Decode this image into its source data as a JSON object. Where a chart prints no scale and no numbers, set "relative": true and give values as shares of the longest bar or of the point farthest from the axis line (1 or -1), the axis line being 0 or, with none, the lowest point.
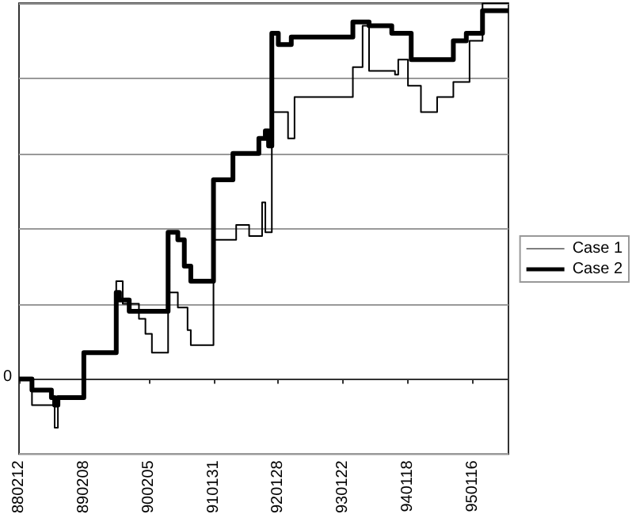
{
  "chart_data": {
    "type": "step",
    "relative": true,
    "categories": [
      "880212",
      null,
      null,
      null,
      null,
      null,
      null,
      null,
      null,
      null,
      null,
      null,
      null,
      null,
      null,
      null,
      null,
      null,
      null,
      null,
      "890208",
      null,
      null,
      null,
      null,
      null,
      null,
      null,
      null,
      null,
      null,
      null,
      null,
      null,
      null,
      null,
      null,
      null,
      null,
      null,
      "900205",
      null,
      null,
      null,
      null,
      null,
      null,
      null,
      null,
      null,
      null,
      null,
      null,
      null,
      null,
      null,
      null,
      null,
      null,
      null,
      "910131",
      null,
      null,
      null,
      null,
      null,
      null,
      null,
      null,
      null,
      null,
      null,
      null,
      null,
      null,
      null,
      null,
      null,
      null,
      null,
      "920128",
      null,
      null,
      null,
      null,
      null,
      null,
      null,
      null,
      null,
      null,
      null,
      null,
      null,
      null,
      null,
      null,
      null,
      null,
      null,
      "930122",
      null,
      null,
      null,
      null,
      null,
      null,
      null,
      null,
      null,
      null,
      null,
      null,
      null,
      null,
      null,
      null,
      null,
      null,
      null,
      "940118",
      null,
      null,
      null,
      null,
      null,
      null,
      null,
      null,
      null,
      null,
      null,
      null,
      null,
      null,
      null,
      null,
      null,
      null,
      null,
      "950116",
      null,
      null,
      null,
      null,
      null,
      null,
      null,
      null,
      null,
      null,
      null
    ],
    "series": [
      {
        "name": "Case 1",
        "color": "#000000",
        "values": [
          0,
          0,
          0,
          0,
          -0.07,
          -0.07,
          -0.07,
          -0.07,
          -0.07,
          -0.07,
          -0.07,
          -0.13,
          -0.05,
          -0.05,
          -0.05,
          -0.05,
          -0.05,
          -0.05,
          -0.05,
          -0.05,
          0.07,
          0.07,
          0.07,
          0.07,
          0.07,
          0.07,
          0.07,
          0.07,
          0.07,
          0.07,
          0.26,
          0.26,
          0.2,
          0.2,
          0.2,
          0.2,
          0.2,
          0.16,
          0.16,
          0.12,
          0.12,
          0.07,
          0.07,
          0.07,
          0.07,
          0.07,
          0.23,
          0.23,
          0.23,
          0.19,
          0.19,
          0.19,
          0.13,
          0.09,
          0.09,
          0.09,
          0.09,
          0.09,
          0.09,
          0.09,
          0.37,
          0.37,
          0.37,
          0.37,
          0.37,
          0.37,
          0.37,
          0.41,
          0.41,
          0.41,
          0.41,
          0.38,
          0.38,
          0.38,
          0.38,
          0.47,
          0.39,
          0.39,
          0.71,
          0.71,
          0.71,
          0.71,
          0.71,
          0.64,
          0.64,
          0.75,
          0.75,
          0.75,
          0.75,
          0.75,
          0.75,
          0.75,
          0.75,
          0.75,
          0.75,
          0.75,
          0.75,
          0.75,
          0.75,
          0.75,
          0.75,
          0.75,
          0.75,
          0.83,
          0.83,
          0.83,
          0.94,
          0.94,
          0.82,
          0.82,
          0.82,
          0.82,
          0.82,
          0.82,
          0.82,
          0.82,
          0.81,
          0.85,
          0.85,
          0.85,
          0.78,
          0.78,
          0.78,
          0.78,
          0.71,
          0.71,
          0.71,
          0.71,
          0.71,
          0.75,
          0.75,
          0.75,
          0.75,
          0.75,
          0.79,
          0.79,
          0.79,
          0.79,
          0.79,
          0.9,
          0.9,
          0.9,
          0.9,
          1,
          1,
          1,
          1,
          1,
          1,
          1,
          1,
          1
        ]
      },
      {
        "name": "Case 2",
        "color": "#000000",
        "values": [
          0,
          0,
          0,
          0,
          -0.03,
          -0.03,
          -0.03,
          -0.03,
          -0.03,
          -0.03,
          -0.05,
          -0.07,
          -0.05,
          -0.05,
          -0.05,
          -0.05,
          -0.05,
          -0.05,
          -0.05,
          -0.05,
          0.07,
          0.07,
          0.07,
          0.07,
          0.07,
          0.07,
          0.07,
          0.07,
          0.07,
          0.07,
          0.23,
          0.21,
          0.21,
          0.21,
          0.18,
          0.18,
          0.18,
          0.18,
          0.18,
          0.18,
          0.18,
          0.18,
          0.18,
          0.18,
          0.18,
          0.18,
          0.39,
          0.39,
          0.39,
          0.37,
          0.37,
          0.3,
          0.3,
          0.26,
          0.26,
          0.26,
          0.26,
          0.26,
          0.26,
          0.26,
          0.53,
          0.53,
          0.53,
          0.53,
          0.53,
          0.53,
          0.6,
          0.6,
          0.6,
          0.6,
          0.6,
          0.6,
          0.6,
          0.6,
          0.64,
          0.64,
          0.66,
          0.62,
          0.92,
          0.92,
          0.89,
          0.89,
          0.89,
          0.89,
          0.91,
          0.91,
          0.91,
          0.91,
          0.91,
          0.91,
          0.91,
          0.91,
          0.91,
          0.91,
          0.91,
          0.91,
          0.91,
          0.91,
          0.91,
          0.91,
          0.91,
          0.91,
          0.91,
          0.95,
          0.95,
          0.95,
          0.95,
          0.95,
          0.94,
          0.94,
          0.94,
          0.94,
          0.94,
          0.94,
          0.94,
          0.92,
          0.92,
          0.92,
          0.92,
          0.92,
          0.92,
          0.85,
          0.85,
          0.85,
          0.85,
          0.85,
          0.85,
          0.85,
          0.85,
          0.85,
          0.85,
          0.85,
          0.85,
          0.85,
          0.9,
          0.9,
          0.9,
          0.9,
          0.92,
          0.92,
          0.92,
          0.92,
          0.92,
          0.98,
          0.98,
          0.98,
          0.98,
          0.98,
          0.98,
          0.98,
          0.98,
          0.98
        ]
      }
    ],
    "annotations": [
      "0"
    ],
    "grid": "y",
    "legend": "right",
    "line_style": "solid",
    "marker": "none"
  }
}
